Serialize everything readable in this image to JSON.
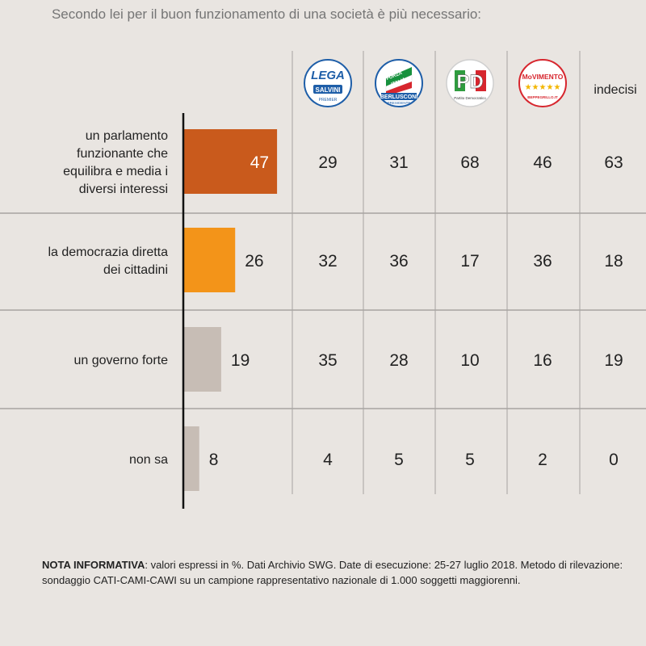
{
  "title": "Secondo lei per il buon funzionamento di una società è più necessario:",
  "columns": [
    {
      "id": "lega",
      "logo": "lega-logo",
      "logo_text": [
        "LEGA",
        "SALVINI",
        "PREMIER"
      ]
    },
    {
      "id": "forza-italia",
      "logo": "forza-italia-logo",
      "logo_text": [
        "FORZA",
        "ITALIA",
        "BERLUSCONI",
        "PRESIDENTE"
      ]
    },
    {
      "id": "pd",
      "logo": "pd-logo",
      "logo_text": [
        "PD",
        "Partito Democratico"
      ]
    },
    {
      "id": "m5s",
      "logo": "movimento-5-stelle-logo",
      "logo_text": [
        "MoVIMENTO",
        "★★★★★",
        "BEPPEGRILLO.IT"
      ]
    },
    {
      "id": "indecisi",
      "label": "indecisi"
    }
  ],
  "colors": {
    "row1_bar": "#c95a1c",
    "row2_bar": "#f39419",
    "other_bar": "#c7bdb5",
    "divider": "#a7a4a1",
    "axis": "#111111"
  },
  "chart_data": {
    "type": "bar",
    "orientation": "horizontal",
    "categories": [
      [
        "un parlamento",
        "funzionante che",
        "equilibra e media i",
        "diversi interessi"
      ],
      [
        "la democrazia diretta",
        "dei cittadini"
      ],
      [
        "un governo forte"
      ],
      [
        "non sa"
      ]
    ],
    "values": [
      47,
      26,
      19,
      8
    ],
    "table": [
      [
        29,
        31,
        68,
        46,
        63
      ],
      [
        32,
        36,
        17,
        36,
        18
      ],
      [
        35,
        28,
        10,
        16,
        19
      ],
      [
        4,
        5,
        5,
        2,
        0
      ]
    ],
    "unit": "%",
    "xlim": [
      0,
      100
    ]
  },
  "note": {
    "label": "NOTA INFORMATIVA",
    "text": ": valori espressi in %. Dati Archivio SWG. Date di esecuzione: 25-27 luglio 2018. Metodo di rilevazione: sondaggio CATI-CAMI-CAWI su un campione rappresentativo nazionale di 1.000 soggetti maggiorenni."
  }
}
